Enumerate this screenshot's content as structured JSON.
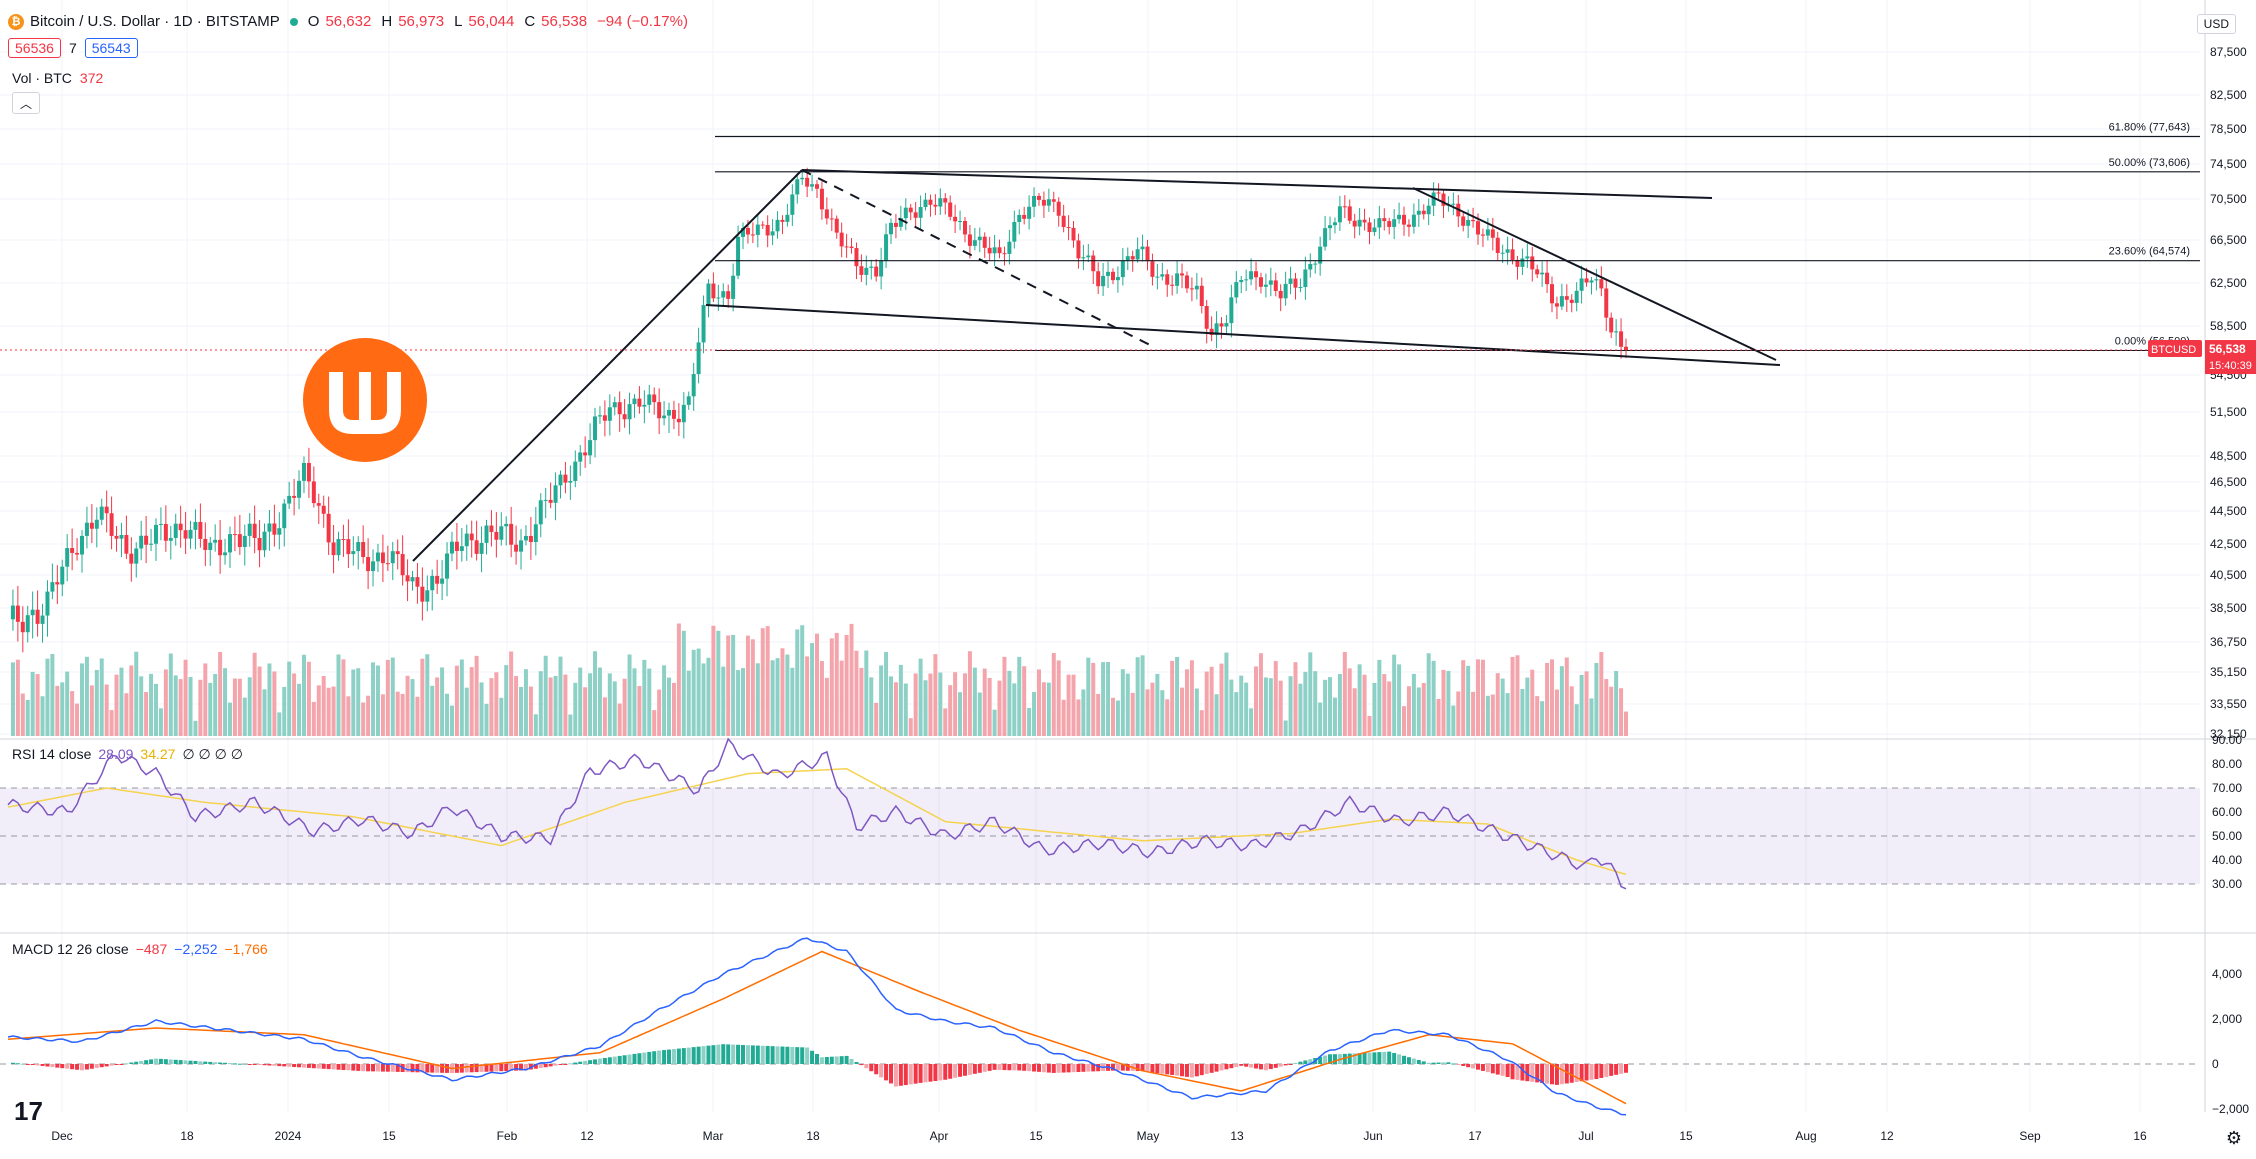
{
  "header": {
    "symbol_icon": "bitcoin-icon",
    "title": "Bitcoin / U.S. Dollar · 1D · BITSTAMP",
    "ohlc": [
      {
        "k": "O",
        "v": "56,632"
      },
      {
        "k": "H",
        "v": "56,973"
      },
      {
        "k": "L",
        "v": "56,044"
      },
      {
        "k": "C",
        "v": "56,538"
      },
      {
        "k": "",
        "v": "−94 (−0.17%)"
      }
    ],
    "bid": "56536",
    "spread": "7",
    "ask": "56543",
    "vol_label": "Vol · BTC",
    "vol_value": "372",
    "currency": "USD"
  },
  "rsi_legend": {
    "label": "RSI 14 close",
    "v1": "28.09",
    "v2": "34.27",
    "extra": "∅ ∅ ∅ ∅"
  },
  "macd_legend": {
    "label": "MACD 12 26 close",
    "v1": "−487",
    "v2": "−2,252",
    "v3": "−1,766"
  },
  "colors": {
    "up": "#22ab94",
    "down": "#f23645",
    "up_vol": "#8dd0c6",
    "down_vol": "#f4a4ab",
    "rsi": "#7e57c2",
    "rsi_ma": "#f5d34f",
    "macd": "#2962ff",
    "signal": "#ff6d00"
  },
  "chart_data": [
    {
      "name": "price",
      "type": "candlestick",
      "y_ticks": [
        "87,500",
        "82,500",
        "78,500",
        "74,500",
        "70,500",
        "66,500",
        "62,500",
        "58,500",
        "54,500",
        "51,500",
        "48,500",
        "46,500",
        "44,500",
        "42,500",
        "40,500",
        "38,500",
        "36,750",
        "35,150",
        "33,550",
        "32,150"
      ],
      "x_ticks": [
        "Dec",
        "18",
        "2024",
        "15",
        "Feb",
        "12",
        "Mar",
        "18",
        "Apr",
        "15",
        "May",
        "13",
        "Jun",
        "17",
        "Jul",
        "15",
        "Aug",
        "12",
        "Sep",
        "16"
      ],
      "last_price_label": "56,538",
      "symbol_label": "BTCUSD",
      "countdown": "15:40:39",
      "fib_levels": [
        {
          "label": "61.80% (77,643)",
          "value": 77643
        },
        {
          "label": "50.00% (73,606)",
          "value": 73606
        },
        {
          "label": "23.60% (64,574)",
          "value": 64574
        },
        {
          "label": "0.00% (56,500)",
          "value": 56500
        }
      ]
    },
    {
      "name": "rsi",
      "type": "line",
      "y_ticks": [
        "90.00",
        "80.00",
        "70.00",
        "60.00",
        "50.00",
        "40.00",
        "30.00"
      ],
      "upper_band": 70,
      "lower_band": 30
    },
    {
      "name": "macd",
      "type": "line+histogram",
      "y_ticks": [
        "4,000",
        "2,000",
        "0",
        "−2,000"
      ]
    }
  ]
}
